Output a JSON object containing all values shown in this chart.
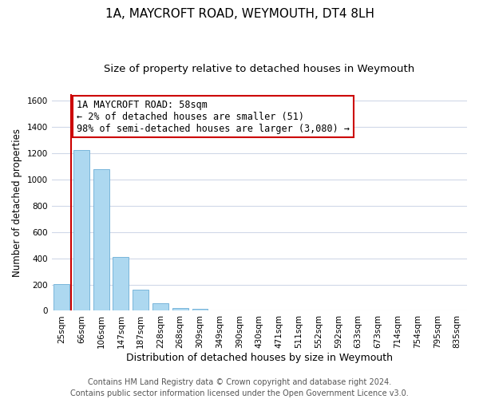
{
  "title": "1A, MAYCROFT ROAD, WEYMOUTH, DT4 8LH",
  "subtitle": "Size of property relative to detached houses in Weymouth",
  "xlabel": "Distribution of detached houses by size in Weymouth",
  "ylabel": "Number of detached properties",
  "bar_labels": [
    "25sqm",
    "66sqm",
    "106sqm",
    "147sqm",
    "187sqm",
    "228sqm",
    "268sqm",
    "309sqm",
    "349sqm",
    "390sqm",
    "430sqm",
    "471sqm",
    "511sqm",
    "552sqm",
    "592sqm",
    "633sqm",
    "673sqm",
    "714sqm",
    "754sqm",
    "795sqm",
    "835sqm"
  ],
  "bar_values": [
    205,
    1225,
    1075,
    410,
    160,
    55,
    20,
    15,
    0,
    0,
    0,
    0,
    0,
    0,
    0,
    0,
    0,
    0,
    0,
    0,
    0
  ],
  "bar_color": "#add8f0",
  "bar_edge_color": "#6baed6",
  "property_line_color": "#cc0000",
  "annotation_title": "1A MAYCROFT ROAD: 58sqm",
  "annotation_line1": "← 2% of detached houses are smaller (51)",
  "annotation_line2": "98% of semi-detached houses are larger (3,080) →",
  "annotation_box_color": "#ffffff",
  "annotation_box_edge": "#cc0000",
  "ylim": [
    0,
    1650
  ],
  "yticks": [
    0,
    200,
    400,
    600,
    800,
    1000,
    1200,
    1400,
    1600
  ],
  "footer_line1": "Contains HM Land Registry data © Crown copyright and database right 2024.",
  "footer_line2": "Contains public sector information licensed under the Open Government Licence v3.0.",
  "bg_color": "#ffffff",
  "grid_color": "#d0d8e8",
  "title_fontsize": 11,
  "subtitle_fontsize": 9.5,
  "xlabel_fontsize": 9,
  "ylabel_fontsize": 8.5,
  "tick_fontsize": 7.5,
  "footer_fontsize": 7,
  "annotation_fontsize": 8.5
}
